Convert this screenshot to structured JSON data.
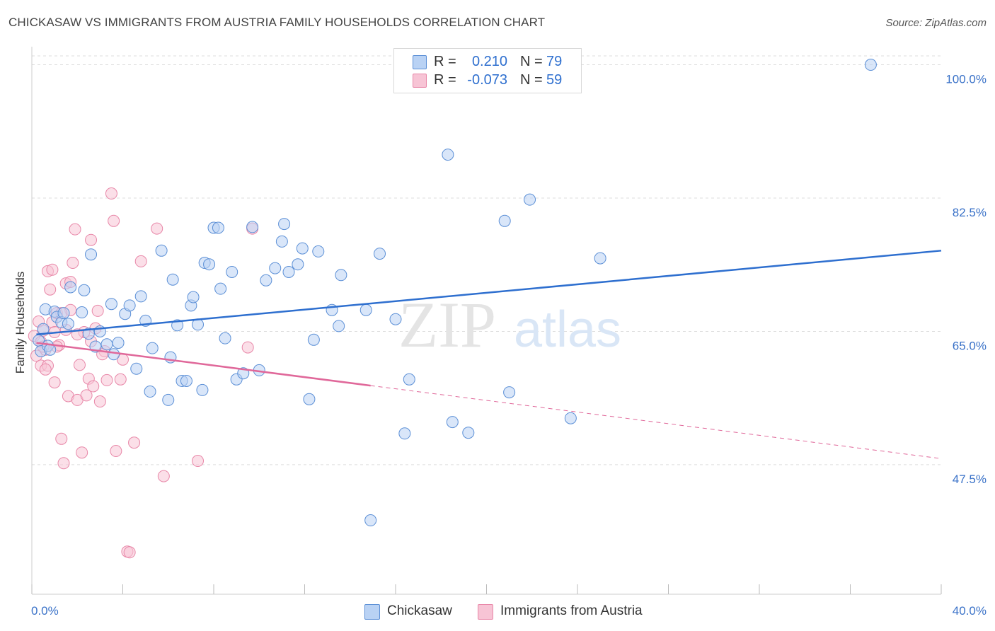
{
  "title": "CHICKASAW VS IMMIGRANTS FROM AUSTRIA FAMILY HOUSEHOLDS CORRELATION CHART",
  "source": "Source: ZipAtlas.com",
  "watermark": {
    "zip": "ZIP",
    "atlas": "atlas"
  },
  "legend_top": [
    {
      "r_label": "R =",
      "r_value": "0.210",
      "n_label": "N =",
      "n_value": "79"
    },
    {
      "r_label": "R =",
      "r_value": "-0.073",
      "n_label": "N =",
      "n_value": "59"
    }
  ],
  "bottom_legend": [
    "Chickasaw",
    "Immigrants from Austria"
  ],
  "colors": {
    "blue": "#5b8fd6",
    "blue_fill": "#b9d2f4",
    "blue_line": "#2e6fcf",
    "pink": "#e887a8",
    "pink_fill": "#f7c4d5",
    "pink_line": "#e0689a",
    "axis_text": "#3a72c8",
    "grid": "#dddddd"
  },
  "chart_data": {
    "type": "scatter",
    "ylabel": "Family Households",
    "xlim": [
      0,
      40
    ],
    "ylim": [
      30.5,
      102
    ],
    "x_tick_labels": [
      "0.0%",
      "40.0%"
    ],
    "y_ticks": [
      {
        "value": 100,
        "label": "100.0%"
      },
      {
        "value": 82.5,
        "label": "82.5%"
      },
      {
        "value": 65,
        "label": "65.0%"
      },
      {
        "value": 47.5,
        "label": "47.5%"
      }
    ],
    "series": [
      {
        "name": "Chickasaw",
        "color": "#5b8fd6",
        "trend": {
          "x": [
            0.2,
            40
          ],
          "y": [
            64.6,
            75.6
          ],
          "dashed_from": null
        },
        "points": [
          [
            0.3,
            63.8
          ],
          [
            0.4,
            62.4
          ],
          [
            0.5,
            65.3
          ],
          [
            0.6,
            67.9
          ],
          [
            0.7,
            63.1
          ],
          [
            0.8,
            62.6
          ],
          [
            1.0,
            67.6
          ],
          [
            1.1,
            66.9
          ],
          [
            1.3,
            66.2
          ],
          [
            1.4,
            67.4
          ],
          [
            1.6,
            66.0
          ],
          [
            1.7,
            70.8
          ],
          [
            2.2,
            67.5
          ],
          [
            2.3,
            70.4
          ],
          [
            2.5,
            64.7
          ],
          [
            2.6,
            75.1
          ],
          [
            2.8,
            63.0
          ],
          [
            3.0,
            65.0
          ],
          [
            3.3,
            63.3
          ],
          [
            3.5,
            68.6
          ],
          [
            3.6,
            62.0
          ],
          [
            3.8,
            63.5
          ],
          [
            4.1,
            67.3
          ],
          [
            4.3,
            68.4
          ],
          [
            4.6,
            60.1
          ],
          [
            4.8,
            69.6
          ],
          [
            5.0,
            66.4
          ],
          [
            5.2,
            57.1
          ],
          [
            5.3,
            62.8
          ],
          [
            5.7,
            75.6
          ],
          [
            6.0,
            56.0
          ],
          [
            6.1,
            61.6
          ],
          [
            6.2,
            71.8
          ],
          [
            6.4,
            65.8
          ],
          [
            6.6,
            58.5
          ],
          [
            6.8,
            58.5
          ],
          [
            7.0,
            68.4
          ],
          [
            7.1,
            69.5
          ],
          [
            7.3,
            65.9
          ],
          [
            7.5,
            57.3
          ],
          [
            7.6,
            74.0
          ],
          [
            7.8,
            73.8
          ],
          [
            8.0,
            78.6
          ],
          [
            8.2,
            78.6
          ],
          [
            8.3,
            70.6
          ],
          [
            8.5,
            64.1
          ],
          [
            8.8,
            72.8
          ],
          [
            9.0,
            58.7
          ],
          [
            9.3,
            59.5
          ],
          [
            9.7,
            78.7
          ],
          [
            10.0,
            59.9
          ],
          [
            10.3,
            71.7
          ],
          [
            10.7,
            73.3
          ],
          [
            11.0,
            76.8
          ],
          [
            11.1,
            79.1
          ],
          [
            11.3,
            72.8
          ],
          [
            11.7,
            73.8
          ],
          [
            11.9,
            75.9
          ],
          [
            12.2,
            56.1
          ],
          [
            12.4,
            63.9
          ],
          [
            12.6,
            75.5
          ],
          [
            13.2,
            67.8
          ],
          [
            13.5,
            65.7
          ],
          [
            13.6,
            72.4
          ],
          [
            14.7,
            67.8
          ],
          [
            15.3,
            75.2
          ],
          [
            16.0,
            66.6
          ],
          [
            16.4,
            51.6
          ],
          [
            16.6,
            58.7
          ],
          [
            18.3,
            88.2
          ],
          [
            18.5,
            53.1
          ],
          [
            19.2,
            51.7
          ],
          [
            20.8,
            79.5
          ],
          [
            21.0,
            57.0
          ],
          [
            21.9,
            82.3
          ],
          [
            23.7,
            53.6
          ],
          [
            25.0,
            74.6
          ],
          [
            36.9,
            100.0
          ],
          [
            14.9,
            40.2
          ]
        ]
      },
      {
        "name": "Immigrants from Austria",
        "color": "#e887a8",
        "trend": {
          "x": [
            0.2,
            40
          ],
          "y": [
            63.5,
            48.3
          ],
          "dashed_from": 14.9
        },
        "points": [
          [
            0.1,
            64.4
          ],
          [
            0.2,
            61.8
          ],
          [
            0.3,
            66.3
          ],
          [
            0.4,
            60.5
          ],
          [
            0.4,
            63.6
          ],
          [
            0.5,
            65.1
          ],
          [
            0.6,
            62.6
          ],
          [
            0.7,
            72.9
          ],
          [
            0.7,
            60.5
          ],
          [
            0.8,
            70.5
          ],
          [
            0.9,
            66.2
          ],
          [
            1.0,
            64.9
          ],
          [
            1.0,
            58.3
          ],
          [
            1.1,
            67.4
          ],
          [
            1.2,
            63.2
          ],
          [
            1.3,
            50.9
          ],
          [
            1.4,
            47.7
          ],
          [
            1.5,
            71.3
          ],
          [
            1.6,
            56.5
          ],
          [
            1.7,
            67.8
          ],
          [
            1.8,
            74.0
          ],
          [
            1.9,
            78.4
          ],
          [
            2.0,
            56.0
          ],
          [
            2.1,
            60.6
          ],
          [
            2.2,
            49.1
          ],
          [
            2.3,
            64.9
          ],
          [
            2.4,
            56.6
          ],
          [
            2.5,
            58.8
          ],
          [
            2.6,
            77.0
          ],
          [
            2.7,
            57.8
          ],
          [
            2.8,
            65.4
          ],
          [
            2.9,
            67.7
          ],
          [
            3.0,
            55.8
          ],
          [
            3.2,
            62.4
          ],
          [
            3.3,
            58.6
          ],
          [
            3.5,
            83.1
          ],
          [
            3.6,
            79.5
          ],
          [
            3.7,
            49.3
          ],
          [
            3.9,
            58.7
          ],
          [
            4.0,
            61.3
          ],
          [
            4.2,
            36.1
          ],
          [
            4.3,
            36.0
          ],
          [
            4.5,
            50.4
          ],
          [
            4.8,
            74.2
          ],
          [
            5.5,
            78.5
          ],
          [
            5.8,
            46.0
          ],
          [
            7.3,
            48.0
          ],
          [
            9.7,
            78.5
          ],
          [
            9.5,
            62.9
          ],
          [
            1.1,
            63.0
          ],
          [
            1.3,
            67.4
          ],
          [
            0.9,
            73.1
          ],
          [
            1.5,
            65.2
          ],
          [
            2.0,
            64.6
          ],
          [
            2.6,
            63.7
          ],
          [
            1.7,
            71.5
          ],
          [
            3.1,
            62.0
          ],
          [
            0.5,
            63.0
          ],
          [
            0.6,
            60.0
          ]
        ]
      }
    ]
  }
}
